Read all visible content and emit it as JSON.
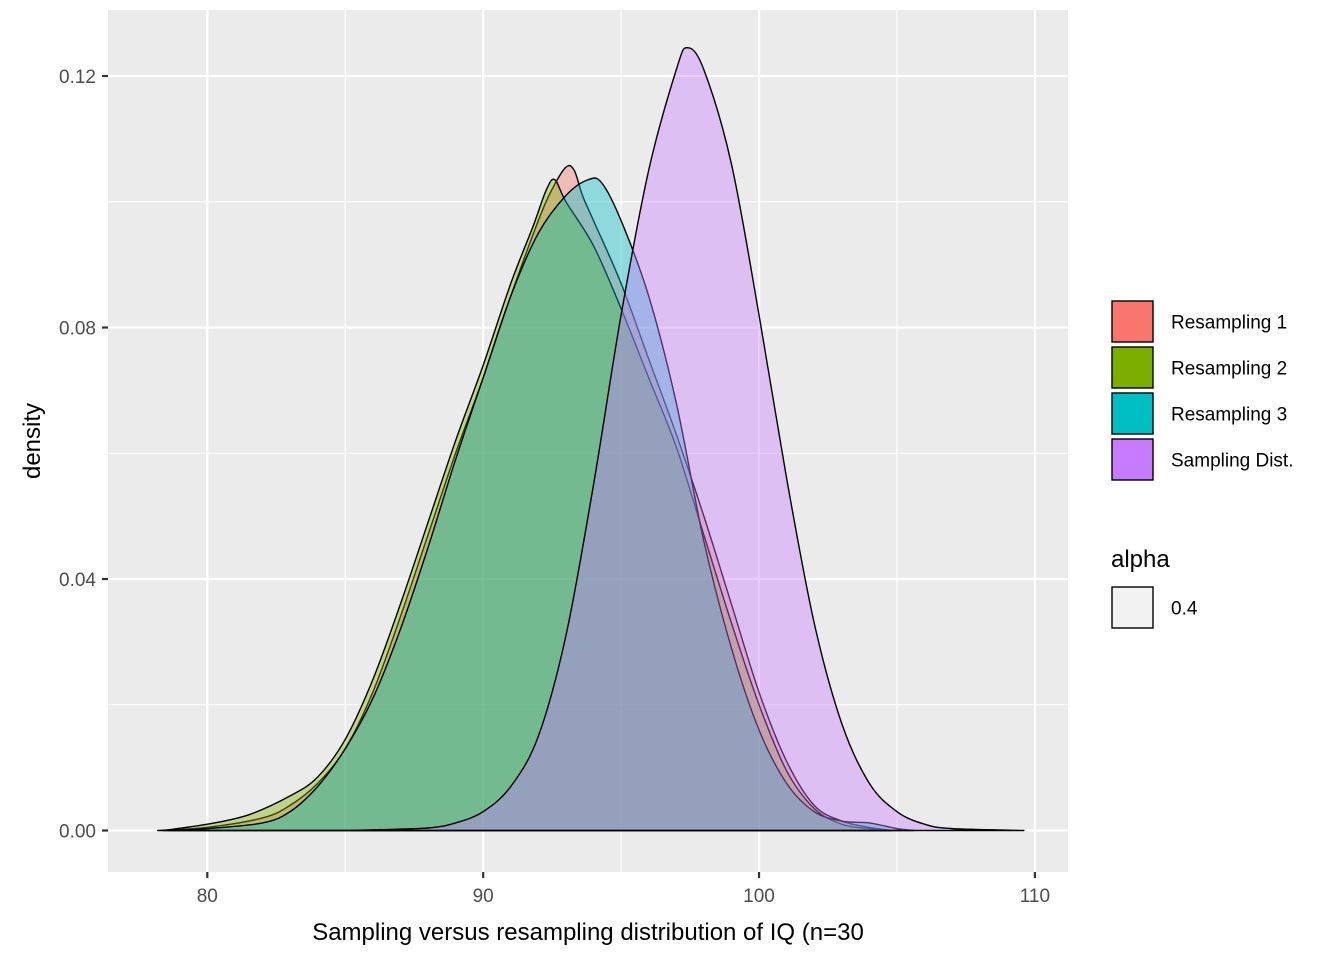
{
  "chart_data": {
    "type": "area",
    "subtype": "density",
    "xlabel": "Sampling versus resampling distribution of IQ (n=30",
    "ylabel": "density",
    "xlim": [
      76.4,
      111.2
    ],
    "ylim": [
      -0.0066,
      0.1305
    ],
    "x_ticks": [
      80,
      90,
      100,
      110
    ],
    "x_tick_labels": [
      "80",
      "90",
      "100",
      "110"
    ],
    "y_ticks": [
      0,
      0.04,
      0.08,
      0.12
    ],
    "y_tick_labels": [
      "0.00",
      "0.04",
      "0.08",
      "0.12"
    ],
    "grid": true,
    "legend_position": "right",
    "alpha": 0.4,
    "series": [
      {
        "name": "Resampling 1",
        "color": "#F8766D",
        "points": [
          [
            78.2,
            0
          ],
          [
            80,
            0.0005
          ],
          [
            82,
            0.002
          ],
          [
            83,
            0.004
          ],
          [
            84,
            0.0075
          ],
          [
            85,
            0.013
          ],
          [
            86,
            0.022
          ],
          [
            87,
            0.034
          ],
          [
            88,
            0.047
          ],
          [
            89,
            0.06
          ],
          [
            90,
            0.072
          ],
          [
            91,
            0.085
          ],
          [
            92,
            0.097
          ],
          [
            92.5,
            0.102
          ],
          [
            93,
            0.1055
          ],
          [
            93.3,
            0.105
          ],
          [
            93.6,
            0.101
          ],
          [
            94,
            0.097
          ],
          [
            95,
            0.087
          ],
          [
            96,
            0.075
          ],
          [
            97,
            0.063
          ],
          [
            98,
            0.05
          ],
          [
            99,
            0.036
          ],
          [
            100,
            0.022
          ],
          [
            101,
            0.011
          ],
          [
            102,
            0.004
          ],
          [
            103,
            0.0015
          ],
          [
            104,
            0.0005
          ],
          [
            104.8,
            0
          ]
        ]
      },
      {
        "name": "Resampling 2",
        "color": "#7CAE00",
        "points": [
          [
            78.4,
            0
          ],
          [
            80,
            0.001
          ],
          [
            81.5,
            0.0025
          ],
          [
            83,
            0.0055
          ],
          [
            84,
            0.0085
          ],
          [
            85,
            0.0145
          ],
          [
            86,
            0.024
          ],
          [
            87,
            0.036
          ],
          [
            88,
            0.049
          ],
          [
            89,
            0.062
          ],
          [
            90,
            0.074
          ],
          [
            91,
            0.087
          ],
          [
            91.8,
            0.096
          ],
          [
            92.3,
            0.102
          ],
          [
            92.6,
            0.1035
          ],
          [
            93,
            0.1
          ],
          [
            94,
            0.093
          ],
          [
            95,
            0.083
          ],
          [
            96,
            0.072
          ],
          [
            97,
            0.061
          ],
          [
            98,
            0.047
          ],
          [
            99,
            0.033
          ],
          [
            100,
            0.02
          ],
          [
            101,
            0.0095
          ],
          [
            102,
            0.0035
          ],
          [
            103,
            0.001
          ],
          [
            104,
            0.0003
          ],
          [
            104.8,
            0
          ]
        ]
      },
      {
        "name": "Resampling 3",
        "color": "#00BFC4",
        "points": [
          [
            78.6,
            0
          ],
          [
            80,
            0.0003
          ],
          [
            82,
            0.0012
          ],
          [
            83,
            0.003
          ],
          [
            84,
            0.007
          ],
          [
            85,
            0.013
          ],
          [
            86,
            0.021
          ],
          [
            87,
            0.032
          ],
          [
            88,
            0.045
          ],
          [
            89,
            0.059
          ],
          [
            90,
            0.072
          ],
          [
            91,
            0.085
          ],
          [
            92,
            0.095
          ],
          [
            93,
            0.101
          ],
          [
            93.8,
            0.1035
          ],
          [
            94.3,
            0.103
          ],
          [
            95,
            0.097
          ],
          [
            96,
            0.085
          ],
          [
            97,
            0.068
          ],
          [
            98,
            0.046
          ],
          [
            99,
            0.029
          ],
          [
            100,
            0.016
          ],
          [
            101,
            0.0075
          ],
          [
            102,
            0.003
          ],
          [
            103,
            0.0015
          ],
          [
            104,
            0.0012
          ],
          [
            105,
            0.0003
          ],
          [
            105.6,
            0
          ]
        ]
      },
      {
        "name": "Sampling Dist.",
        "color": "#C77CFF",
        "points": [
          [
            85.2,
            0
          ],
          [
            86,
            0.0001
          ],
          [
            88,
            0.0004
          ],
          [
            89,
            0.0012
          ],
          [
            90,
            0.003
          ],
          [
            91,
            0.007
          ],
          [
            92,
            0.015
          ],
          [
            93,
            0.031
          ],
          [
            94,
            0.055
          ],
          [
            95,
            0.082
          ],
          [
            96,
            0.105
          ],
          [
            97,
            0.121
          ],
          [
            97.4,
            0.1245
          ],
          [
            98,
            0.121
          ],
          [
            99,
            0.106
          ],
          [
            100,
            0.082
          ],
          [
            101,
            0.056
          ],
          [
            102,
            0.033
          ],
          [
            103,
            0.017
          ],
          [
            104,
            0.0075
          ],
          [
            105,
            0.003
          ],
          [
            106,
            0.001
          ],
          [
            107,
            0.0003
          ],
          [
            109.6,
            0
          ]
        ]
      }
    ]
  },
  "legend": {
    "fill_items": [
      {
        "label": "Resampling 1",
        "color": "#F8766D"
      },
      {
        "label": "Resampling 2",
        "color": "#7CAE00"
      },
      {
        "label": "Resampling 3",
        "color": "#00BFC4"
      },
      {
        "label": "Sampling Dist.",
        "color": "#C77CFF"
      }
    ],
    "alpha_title": "alpha",
    "alpha_items": [
      {
        "label": "0.4",
        "color": "#f2f2f2"
      }
    ]
  }
}
